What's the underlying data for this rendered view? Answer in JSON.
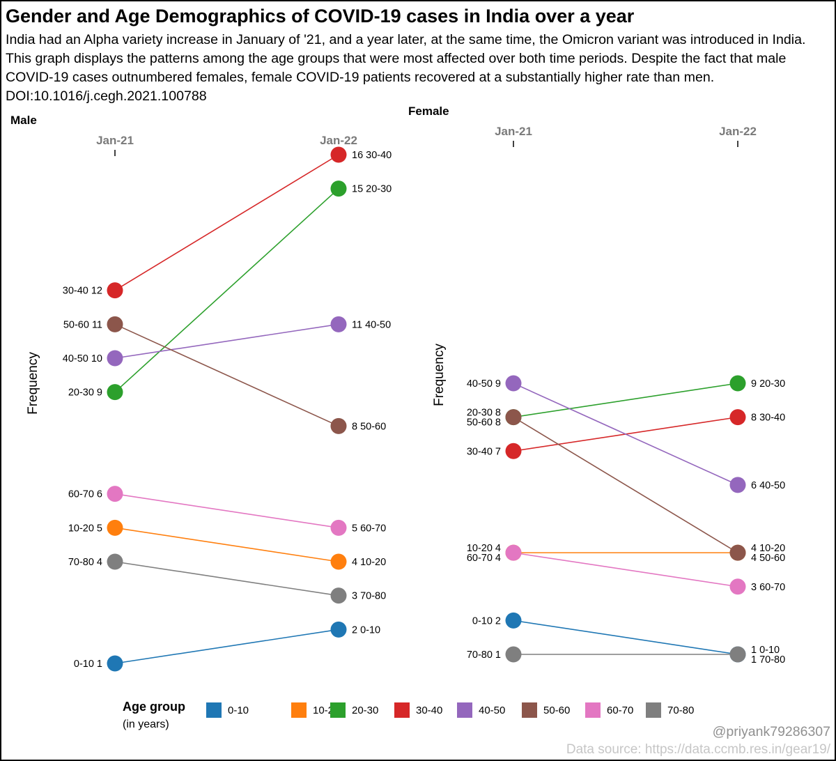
{
  "title": "Gender and Age Demographics of COVID-19 cases in India over a year",
  "subtitle": "India had an Alpha variety increase in January of '21, and a year later, at the same time, the Omicron variant was introduced in India. This graph displays the patterns among the age groups that were most affected over both time periods. Despite the fact that male COVID-19 cases outnumbered females, female COVID-19 patients recovered at a substantially higher rate than men. DOI:10.1016/j.cegh.2021.100788",
  "colors": {
    "0-10": "#1f77b4",
    "10-20": "#ff7f0e",
    "20-30": "#2ca02c",
    "30-40": "#d62728",
    "40-50": "#9467bd",
    "50-60": "#8c564b",
    "60-70": "#e377c2",
    "70-80": "#7f7f7f"
  },
  "legend": {
    "title": "Age group",
    "subtitle": "(in years)",
    "items": [
      "0-10",
      "10-20",
      "20-30",
      "30-40",
      "40-50",
      "50-60",
      "60-70",
      "70-80"
    ]
  },
  "chart_data": [
    {
      "type": "line",
      "panel": "Male",
      "x": [
        "Jan-21",
        "Jan-22"
      ],
      "ylabel": "Frequency",
      "ylim": [
        1,
        16
      ],
      "series": [
        {
          "name": "0-10",
          "values": [
            1,
            2
          ]
        },
        {
          "name": "10-20",
          "values": [
            5,
            4
          ]
        },
        {
          "name": "20-30",
          "values": [
            9,
            15
          ]
        },
        {
          "name": "30-40",
          "values": [
            12,
            16
          ]
        },
        {
          "name": "40-50",
          "values": [
            10,
            11
          ]
        },
        {
          "name": "50-60",
          "values": [
            11,
            8
          ]
        },
        {
          "name": "60-70",
          "values": [
            6,
            5
          ]
        },
        {
          "name": "70-80",
          "values": [
            4,
            3
          ]
        }
      ]
    },
    {
      "type": "line",
      "panel": "Female",
      "x": [
        "Jan-21",
        "Jan-22"
      ],
      "ylabel": "Frequency",
      "ylim": [
        1,
        9
      ],
      "series": [
        {
          "name": "0-10",
          "values": [
            2,
            1
          ]
        },
        {
          "name": "10-20",
          "values": [
            4,
            4
          ]
        },
        {
          "name": "20-30",
          "values": [
            8,
            9
          ]
        },
        {
          "name": "30-40",
          "values": [
            7,
            8
          ]
        },
        {
          "name": "40-50",
          "values": [
            9,
            6
          ]
        },
        {
          "name": "50-60",
          "values": [
            8,
            4
          ]
        },
        {
          "name": "60-70",
          "values": [
            4,
            3
          ]
        },
        {
          "name": "70-80",
          "values": [
            1,
            1
          ]
        }
      ]
    }
  ],
  "footer": {
    "handle": "@priyank79286307",
    "source": "Data source: https://data.ccmb.res.in/gear19/"
  }
}
